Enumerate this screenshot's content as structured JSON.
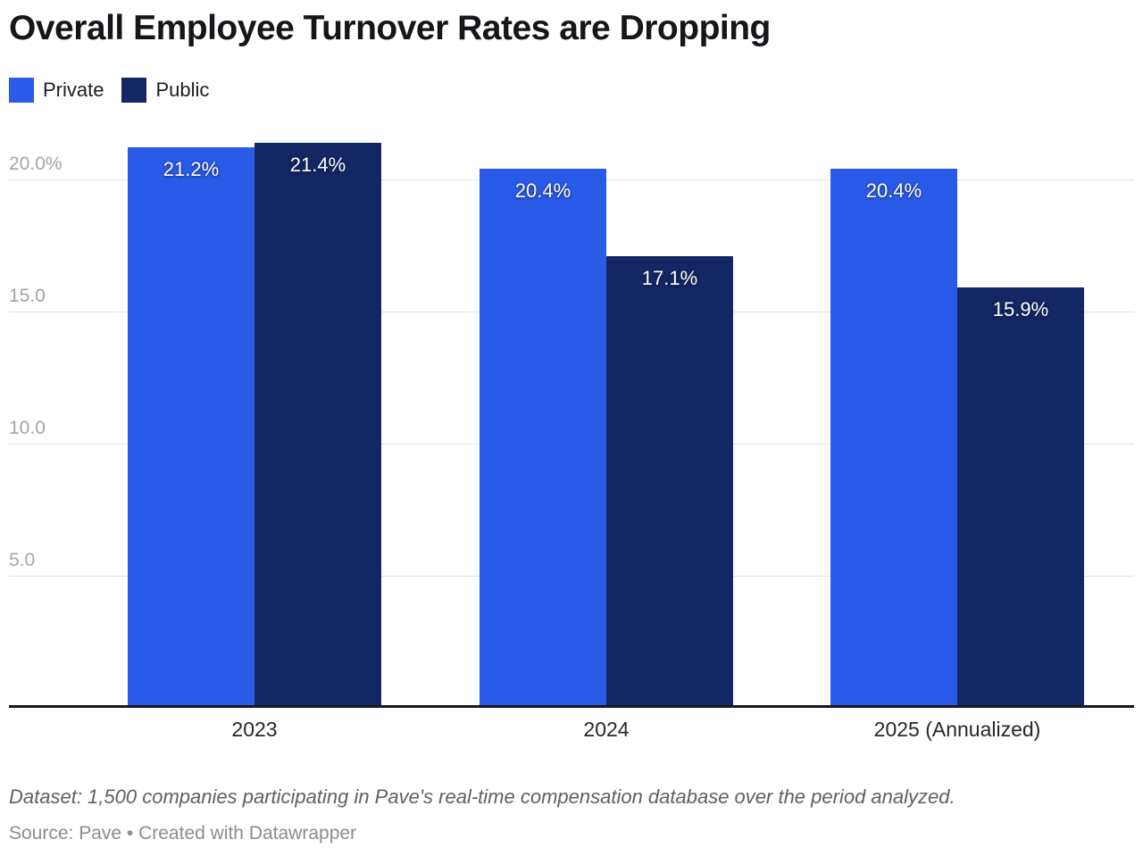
{
  "header": {
    "title": "Overall Employee Turnover Rates are Dropping"
  },
  "chart_data": {
    "type": "bar",
    "title": "Overall Employee Turnover Rates are Dropping",
    "categories": [
      "2023",
      "2024",
      "2025 (Annualized)"
    ],
    "series": [
      {
        "name": "Private",
        "color": "#2a5ae8",
        "values": [
          21.2,
          20.4,
          20.4
        ],
        "labels": [
          "21.2%",
          "20.4%",
          "20.4%"
        ]
      },
      {
        "name": "Public",
        "color": "#122763",
        "values": [
          21.4,
          17.1,
          15.9
        ],
        "labels": [
          "21.4%",
          "17.1%",
          "15.9%"
        ]
      }
    ],
    "xlabel": "",
    "ylabel": "",
    "ylim": [
      0,
      21.8
    ],
    "grid": true,
    "legend_position": "top-left",
    "y_ticks": [
      {
        "value": 5,
        "label": "5.0"
      },
      {
        "value": 10,
        "label": "10.0"
      },
      {
        "value": 15,
        "label": "15.0"
      },
      {
        "value": 20,
        "label": "20.0%"
      }
    ]
  },
  "footer": {
    "dataset_note": "Dataset: 1,500 companies participating in Pave's real-time compensation database over the period analyzed.",
    "source_line": "Source: Pave • Created with Datawrapper"
  }
}
